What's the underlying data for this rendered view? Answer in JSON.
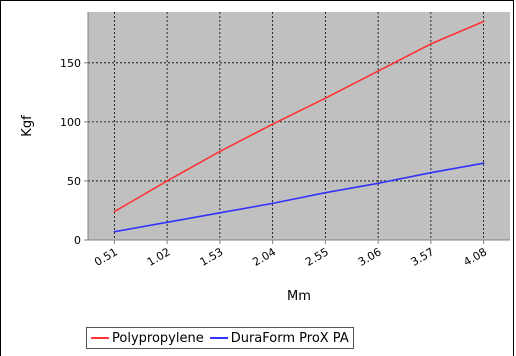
{
  "chart_data": {
    "type": "line",
    "title": "",
    "xlabel": "Mm",
    "ylabel": "Kgf",
    "categories": [
      "0.51",
      "1.02",
      "1.53",
      "2.04",
      "2.55",
      "3.06",
      "3.57",
      "4.08"
    ],
    "y_ticks": [
      "0",
      "50",
      "100",
      "150"
    ],
    "ylim": [
      0,
      193
    ],
    "grid": true,
    "legend_position": "bottom",
    "plot_background": "#c0c0c0",
    "series": [
      {
        "name": "Polypropylene",
        "color": "#ff3333",
        "values": [
          24,
          50,
          75,
          98,
          120,
          143,
          166,
          185
        ]
      },
      {
        "name": "DuraForm ProX PA",
        "color": "#3333ff",
        "values": [
          7,
          15,
          23,
          31,
          40,
          48,
          57,
          65
        ]
      }
    ]
  }
}
